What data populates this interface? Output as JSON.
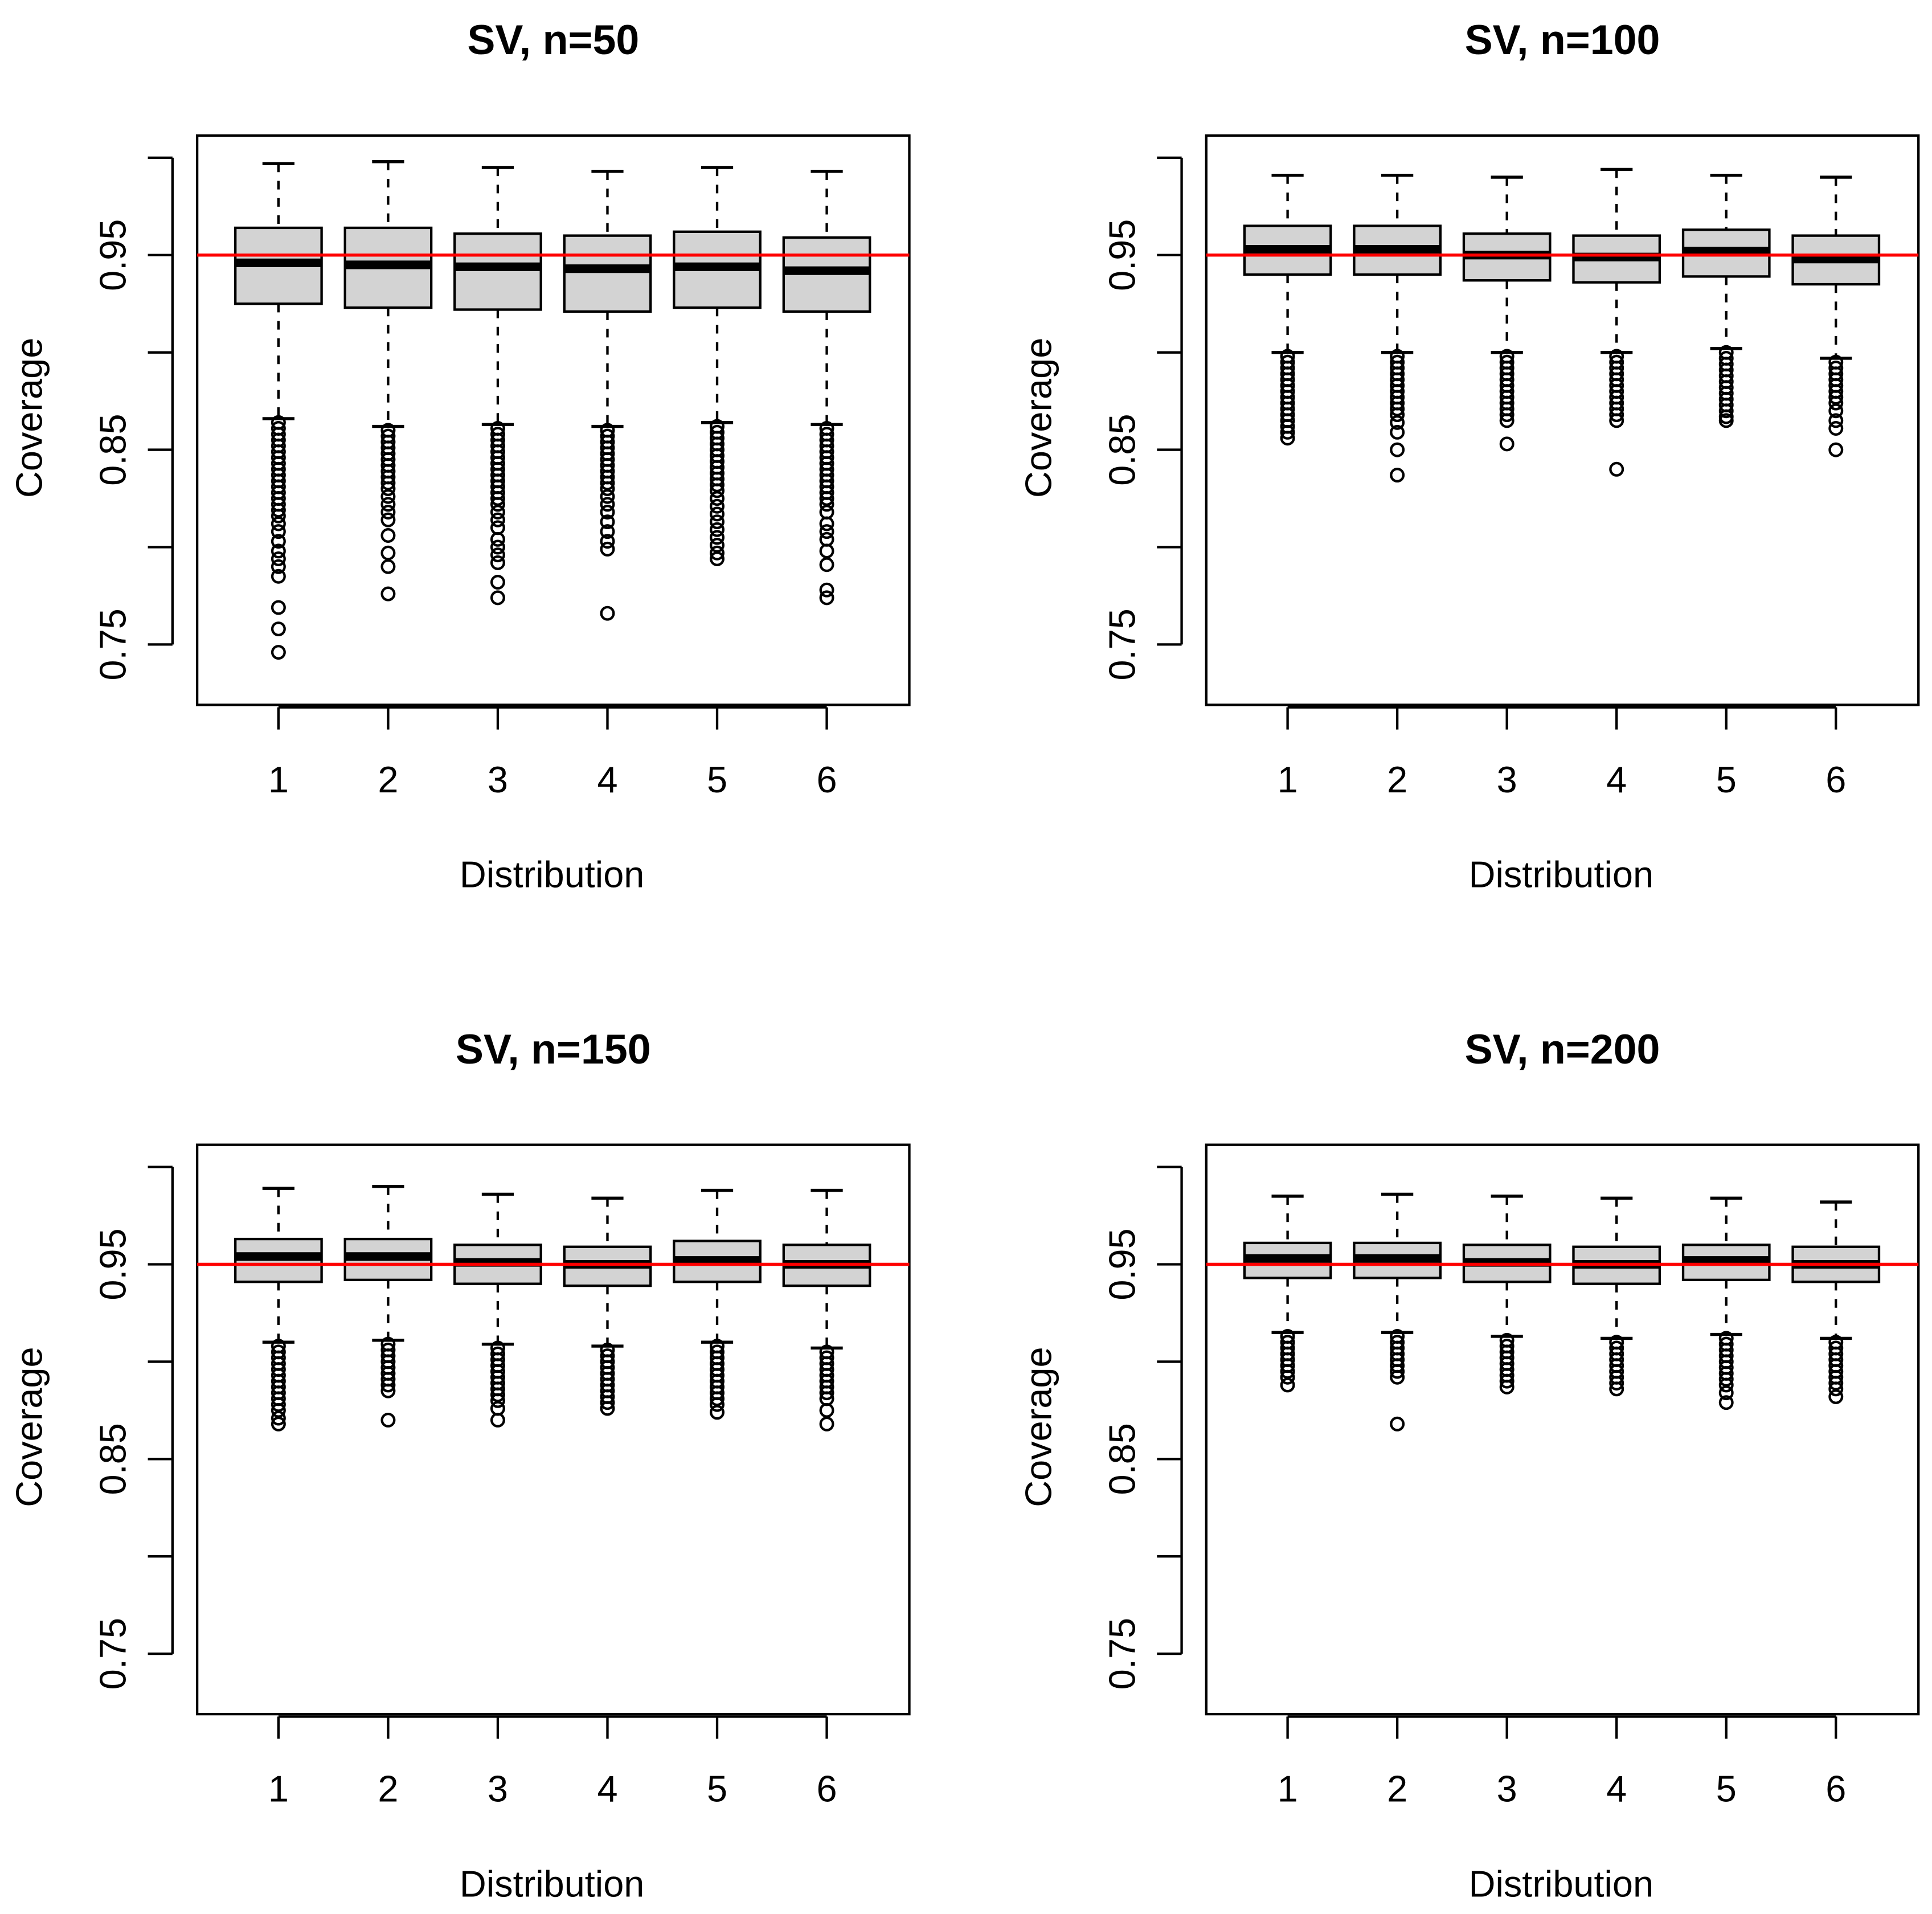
{
  "figure": {
    "reference_line": {
      "value": 0.95,
      "color": "#ff0000"
    },
    "box_fill": "#d3d3d3"
  },
  "chart_data": [
    {
      "type": "boxplot",
      "title": "SV, n=50",
      "xlabel": "Distribution",
      "ylabel": "Coverage",
      "categories": [
        "1",
        "2",
        "3",
        "4",
        "5",
        "6"
      ],
      "yticks": [
        "0.75",
        "0.85",
        "0.95"
      ],
      "ylim": [
        0.72,
        1.0
      ],
      "hline": 0.95,
      "boxes": [
        {
          "whisker_low": 0.866,
          "q1": 0.925,
          "median": 0.946,
          "q3": 0.964,
          "whisker_high": 0.997,
          "outliers": [
            0.864,
            0.861,
            0.858,
            0.855,
            0.852,
            0.849,
            0.846,
            0.843,
            0.84,
            0.837,
            0.834,
            0.831,
            0.828,
            0.825,
            0.822,
            0.819,
            0.816,
            0.812,
            0.808,
            0.803,
            0.798,
            0.794,
            0.79,
            0.785,
            0.769,
            0.758,
            0.746
          ]
        },
        {
          "whisker_low": 0.862,
          "q1": 0.923,
          "median": 0.945,
          "q3": 0.964,
          "whisker_high": 0.998,
          "outliers": [
            0.86,
            0.857,
            0.854,
            0.851,
            0.848,
            0.845,
            0.842,
            0.839,
            0.836,
            0.833,
            0.83,
            0.826,
            0.822,
            0.818,
            0.814,
            0.806,
            0.797,
            0.79,
            0.776
          ]
        },
        {
          "whisker_low": 0.863,
          "q1": 0.922,
          "median": 0.944,
          "q3": 0.961,
          "whisker_high": 0.995,
          "outliers": [
            0.861,
            0.858,
            0.855,
            0.852,
            0.849,
            0.846,
            0.843,
            0.84,
            0.837,
            0.834,
            0.831,
            0.828,
            0.825,
            0.822,
            0.818,
            0.814,
            0.81,
            0.804,
            0.8,
            0.796,
            0.792,
            0.782,
            0.774
          ]
        },
        {
          "whisker_low": 0.862,
          "q1": 0.921,
          "median": 0.943,
          "q3": 0.96,
          "whisker_high": 0.993,
          "outliers": [
            0.86,
            0.857,
            0.854,
            0.851,
            0.848,
            0.845,
            0.842,
            0.839,
            0.836,
            0.833,
            0.83,
            0.826,
            0.822,
            0.818,
            0.813,
            0.808,
            0.803,
            0.799,
            0.766
          ]
        },
        {
          "whisker_low": 0.864,
          "q1": 0.923,
          "median": 0.944,
          "q3": 0.962,
          "whisker_high": 0.995,
          "outliers": [
            0.862,
            0.859,
            0.856,
            0.853,
            0.85,
            0.847,
            0.844,
            0.841,
            0.838,
            0.835,
            0.832,
            0.829,
            0.825,
            0.821,
            0.817,
            0.813,
            0.809,
            0.805,
            0.801,
            0.797,
            0.794
          ]
        },
        {
          "whisker_low": 0.863,
          "q1": 0.921,
          "median": 0.942,
          "q3": 0.959,
          "whisker_high": 0.993,
          "outliers": [
            0.861,
            0.858,
            0.855,
            0.852,
            0.849,
            0.846,
            0.843,
            0.84,
            0.837,
            0.834,
            0.831,
            0.828,
            0.825,
            0.822,
            0.818,
            0.812,
            0.808,
            0.804,
            0.798,
            0.791,
            0.778,
            0.774
          ]
        }
      ]
    },
    {
      "type": "boxplot",
      "title": "SV, n=100",
      "xlabel": "Distribution",
      "ylabel": "Coverage",
      "categories": [
        "1",
        "2",
        "3",
        "4",
        "5",
        "6"
      ],
      "yticks": [
        "0.75",
        "0.85",
        "0.95"
      ],
      "ylim": [
        0.72,
        1.0
      ],
      "hline": 0.95,
      "boxes": [
        {
          "whisker_low": 0.9,
          "q1": 0.94,
          "median": 0.953,
          "q3": 0.965,
          "whisker_high": 0.991,
          "outliers": [
            0.898,
            0.895,
            0.892,
            0.889,
            0.886,
            0.883,
            0.88,
            0.877,
            0.874,
            0.871,
            0.868,
            0.865,
            0.862,
            0.859,
            0.856
          ]
        },
        {
          "whisker_low": 0.9,
          "q1": 0.94,
          "median": 0.953,
          "q3": 0.965,
          "whisker_high": 0.991,
          "outliers": [
            0.898,
            0.895,
            0.892,
            0.889,
            0.886,
            0.883,
            0.88,
            0.877,
            0.874,
            0.871,
            0.868,
            0.864,
            0.859,
            0.85,
            0.837
          ]
        },
        {
          "whisker_low": 0.9,
          "q1": 0.937,
          "median": 0.95,
          "q3": 0.961,
          "whisker_high": 0.99,
          "outliers": [
            0.898,
            0.895,
            0.892,
            0.889,
            0.886,
            0.883,
            0.88,
            0.877,
            0.874,
            0.871,
            0.868,
            0.865,
            0.853
          ]
        },
        {
          "whisker_low": 0.9,
          "q1": 0.936,
          "median": 0.949,
          "q3": 0.96,
          "whisker_high": 0.994,
          "outliers": [
            0.898,
            0.895,
            0.892,
            0.889,
            0.886,
            0.883,
            0.88,
            0.877,
            0.874,
            0.871,
            0.868,
            0.865,
            0.84
          ]
        },
        {
          "whisker_low": 0.902,
          "q1": 0.939,
          "median": 0.952,
          "q3": 0.963,
          "whisker_high": 0.991,
          "outliers": [
            0.9,
            0.897,
            0.894,
            0.891,
            0.888,
            0.885,
            0.882,
            0.879,
            0.876,
            0.873,
            0.87,
            0.867,
            0.865
          ]
        },
        {
          "whisker_low": 0.897,
          "q1": 0.935,
          "median": 0.948,
          "q3": 0.96,
          "whisker_high": 0.99,
          "outliers": [
            0.895,
            0.892,
            0.889,
            0.886,
            0.883,
            0.88,
            0.877,
            0.874,
            0.87,
            0.865,
            0.861,
            0.85
          ]
        }
      ]
    },
    {
      "type": "boxplot",
      "title": "SV, n=150",
      "xlabel": "Distribution",
      "ylabel": "Coverage",
      "categories": [
        "1",
        "2",
        "3",
        "4",
        "5",
        "6"
      ],
      "yticks": [
        "0.75",
        "0.85",
        "0.95"
      ],
      "ylim": [
        0.72,
        1.0
      ],
      "hline": 0.95,
      "boxes": [
        {
          "whisker_low": 0.91,
          "q1": 0.941,
          "median": 0.954,
          "q3": 0.963,
          "whisker_high": 0.989,
          "outliers": [
            0.908,
            0.905,
            0.902,
            0.899,
            0.896,
            0.893,
            0.89,
            0.887,
            0.884,
            0.881,
            0.878,
            0.875,
            0.871,
            0.868
          ]
        },
        {
          "whisker_low": 0.911,
          "q1": 0.942,
          "median": 0.954,
          "q3": 0.963,
          "whisker_high": 0.99,
          "outliers": [
            0.909,
            0.906,
            0.903,
            0.9,
            0.897,
            0.894,
            0.891,
            0.888,
            0.885,
            0.87
          ]
        },
        {
          "whisker_low": 0.909,
          "q1": 0.94,
          "median": 0.951,
          "q3": 0.96,
          "whisker_high": 0.986,
          "outliers": [
            0.907,
            0.904,
            0.901,
            0.898,
            0.895,
            0.892,
            0.889,
            0.886,
            0.883,
            0.88,
            0.876,
            0.87
          ]
        },
        {
          "whisker_low": 0.908,
          "q1": 0.939,
          "median": 0.95,
          "q3": 0.959,
          "whisker_high": 0.984,
          "outliers": [
            0.906,
            0.903,
            0.9,
            0.897,
            0.894,
            0.891,
            0.888,
            0.885,
            0.882,
            0.879,
            0.876
          ]
        },
        {
          "whisker_low": 0.91,
          "q1": 0.941,
          "median": 0.952,
          "q3": 0.962,
          "whisker_high": 0.988,
          "outliers": [
            0.908,
            0.905,
            0.902,
            0.899,
            0.896,
            0.893,
            0.89,
            0.887,
            0.884,
            0.881,
            0.878,
            0.874
          ]
        },
        {
          "whisker_low": 0.907,
          "q1": 0.939,
          "median": 0.95,
          "q3": 0.96,
          "whisker_high": 0.988,
          "outliers": [
            0.905,
            0.902,
            0.899,
            0.896,
            0.893,
            0.89,
            0.887,
            0.884,
            0.881,
            0.875,
            0.868
          ]
        }
      ]
    },
    {
      "type": "boxplot",
      "title": "SV, n=200",
      "xlabel": "Distribution",
      "ylabel": "Coverage",
      "categories": [
        "1",
        "2",
        "3",
        "4",
        "5",
        "6"
      ],
      "yticks": [
        "0.75",
        "0.85",
        "0.95"
      ],
      "ylim": [
        0.72,
        1.0
      ],
      "hline": 0.95,
      "boxes": [
        {
          "whisker_low": 0.915,
          "q1": 0.943,
          "median": 0.953,
          "q3": 0.961,
          "whisker_high": 0.985,
          "outliers": [
            0.913,
            0.91,
            0.907,
            0.904,
            0.901,
            0.898,
            0.895,
            0.892,
            0.888
          ]
        },
        {
          "whisker_low": 0.915,
          "q1": 0.943,
          "median": 0.953,
          "q3": 0.961,
          "whisker_high": 0.986,
          "outliers": [
            0.913,
            0.91,
            0.907,
            0.904,
            0.901,
            0.898,
            0.895,
            0.892,
            0.868
          ]
        },
        {
          "whisker_low": 0.913,
          "q1": 0.941,
          "median": 0.951,
          "q3": 0.96,
          "whisker_high": 0.985,
          "outliers": [
            0.911,
            0.908,
            0.905,
            0.902,
            0.899,
            0.896,
            0.893,
            0.89,
            0.887
          ]
        },
        {
          "whisker_low": 0.912,
          "q1": 0.94,
          "median": 0.95,
          "q3": 0.959,
          "whisker_high": 0.984,
          "outliers": [
            0.91,
            0.907,
            0.904,
            0.901,
            0.898,
            0.895,
            0.892,
            0.889,
            0.886
          ]
        },
        {
          "whisker_low": 0.914,
          "q1": 0.942,
          "median": 0.952,
          "q3": 0.96,
          "whisker_high": 0.984,
          "outliers": [
            0.912,
            0.909,
            0.906,
            0.903,
            0.9,
            0.897,
            0.894,
            0.891,
            0.888,
            0.884,
            0.879
          ]
        },
        {
          "whisker_low": 0.912,
          "q1": 0.941,
          "median": 0.95,
          "q3": 0.959,
          "whisker_high": 0.982,
          "outliers": [
            0.91,
            0.907,
            0.904,
            0.901,
            0.898,
            0.895,
            0.892,
            0.889,
            0.886,
            0.882
          ]
        }
      ]
    }
  ]
}
